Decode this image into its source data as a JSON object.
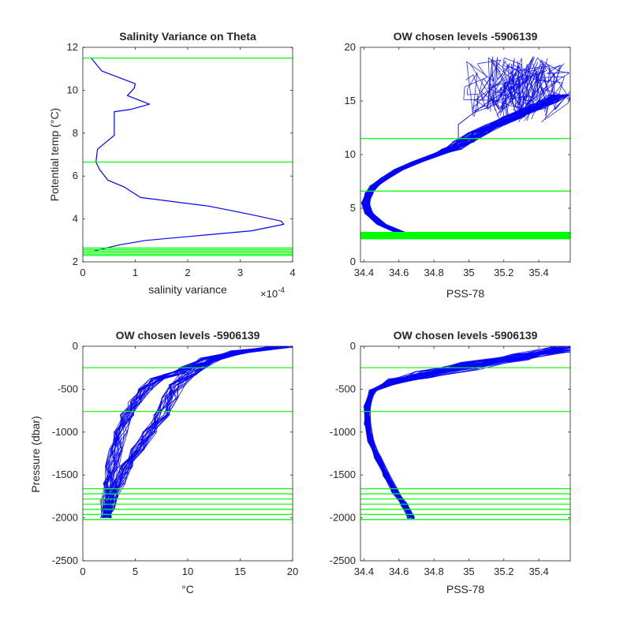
{
  "colors": {
    "profile": "#0000ff",
    "level": "#00ff00",
    "axis": "#262626"
  },
  "chart_data": [
    {
      "id": "tl",
      "type": "line",
      "title": "Salinity Variance on Theta",
      "xlabel": "salinity variance",
      "ylabel": "Potential temp (°C)",
      "xlim": [
        0,
        0.0004
      ],
      "ylim": [
        2,
        12
      ],
      "xticks": [
        0,
        1,
        2,
        3,
        4
      ],
      "xtick_scale": 0.0001,
      "xtick_labels": [
        "0",
        "1",
        "2",
        "3",
        "4"
      ],
      "x_exponent": "×10",
      "x_exponent_power": "-4",
      "yticks": [
        2,
        4,
        6,
        8,
        10,
        12
      ],
      "ytick_labels": [
        "2",
        "4",
        "6",
        "8",
        "10",
        "12"
      ],
      "series": [
        {
          "x": [
            1.6e-05,
            3.6e-05,
            0.0001,
            9.8e-05,
            8.5e-05,
            0.000127,
            9e-05,
            6e-05,
            6e-05,
            2.8e-05,
            2.5e-05,
            3.2e-05,
            4.8e-05,
            7.8e-05,
            0.00011,
            0.00024,
            0.000322,
            0.000378,
            0.000383,
            0.000322,
            0.00012,
            7.2e-05,
            3.6e-05,
            2e-05
          ],
          "y": [
            11.5,
            10.9,
            10.3,
            10.1,
            9.75,
            9.35,
            9.1,
            9.0,
            7.9,
            7.25,
            6.65,
            6.3,
            5.8,
            5.5,
            5.0,
            4.6,
            4.2,
            3.9,
            3.75,
            3.45,
            3.0,
            2.8,
            2.6,
            2.5
          ]
        }
      ],
      "hlines": [
        11.5,
        6.65,
        2.65,
        2.58,
        2.5,
        2.43,
        2.36,
        2.3
      ]
    },
    {
      "id": "tr",
      "type": "line",
      "title": "OW chosen levels -5906139",
      "xlabel": "PSS-78",
      "ylabel": "",
      "xlim": [
        34.38,
        35.58
      ],
      "ylim": [
        0,
        20
      ],
      "xticks": [
        34.4,
        34.6,
        34.8,
        35,
        35.2,
        35.4
      ],
      "xtick_labels": [
        "34.4",
        "34.6",
        "34.8",
        "35",
        "35.2",
        "35.4"
      ],
      "yticks": [
        0,
        5,
        10,
        15,
        20
      ],
      "ytick_labels": [
        "0",
        "5",
        "10",
        "15",
        "20"
      ],
      "series": [
        {
          "x": [
            34.69,
            34.6,
            34.5,
            34.43,
            34.41,
            34.43,
            34.46,
            34.52,
            34.6,
            34.7,
            34.8,
            34.9,
            34.97,
            35.05,
            35.15,
            35.25,
            35.35,
            35.45,
            35.52
          ],
          "y": [
            2.2,
            2.8,
            3.5,
            4.5,
            5.5,
            6.4,
            7.1,
            7.8,
            8.6,
            9.3,
            9.9,
            10.5,
            11.2,
            12.0,
            12.8,
            13.5,
            14.2,
            14.9,
            15.6
          ]
        }
      ],
      "hlines": [
        11.5,
        6.6,
        2.75,
        2.6,
        2.45,
        2.3,
        2.15
      ],
      "band": {
        "center_offsets": [
          -0.06,
          -0.04,
          -0.02,
          0,
          0.02,
          0.04,
          0.06
        ]
      }
    },
    {
      "id": "bl",
      "type": "line",
      "title": "OW chosen levels -5906139",
      "xlabel": "°C",
      "ylabel": "Pressure (dbar)",
      "xlim": [
        0,
        20
      ],
      "ylim": [
        -2500,
        0
      ],
      "xticks": [
        0,
        5,
        10,
        15,
        20
      ],
      "xtick_labels": [
        "0",
        "5",
        "10",
        "15",
        "20"
      ],
      "yticks": [
        -2500,
        -2000,
        -1500,
        -1000,
        -500,
        0
      ],
      "ytick_labels": [
        "-2500",
        "-2000",
        "-1500",
        "-1000",
        "-500",
        "0"
      ],
      "series": [
        {
          "x": [
            19.5,
            15,
            12,
            10,
            8.5,
            7,
            6,
            5,
            4.2,
            3.6,
            3.1,
            2.8,
            2.5,
            2.3,
            2.2
          ],
          "y": [
            0,
            -60,
            -150,
            -250,
            -330,
            -380,
            -500,
            -650,
            -800,
            -1000,
            -1200,
            -1400,
            -1600,
            -1800,
            -2000
          ]
        },
        {
          "x": [
            19,
            15,
            12.5,
            11,
            10,
            9,
            8.3,
            7.5,
            6.3,
            5.2,
            4.2,
            3.4,
            2.8,
            2.4,
            2.2
          ],
          "y": [
            0,
            -60,
            -150,
            -250,
            -330,
            -450,
            -600,
            -800,
            -1000,
            -1200,
            -1400,
            -1600,
            -1750,
            -1900,
            -2000
          ]
        }
      ],
      "hlines": [
        -250,
        -760,
        -1660,
        -1720,
        -1780,
        -1840,
        -1900,
        -1960,
        -2020
      ]
    },
    {
      "id": "br",
      "type": "line",
      "title": "OW chosen levels -5906139",
      "xlabel": "PSS-78",
      "ylabel": "",
      "xlim": [
        34.38,
        35.58
      ],
      "ylim": [
        -2500,
        0
      ],
      "xticks": [
        34.4,
        34.6,
        34.8,
        35,
        35.2,
        35.4
      ],
      "xtick_labels": [
        "34.4",
        "34.6",
        "34.8",
        "35",
        "35.2",
        "35.4"
      ],
      "yticks": [
        -2500,
        -2000,
        -1500,
        -1000,
        -500,
        0
      ],
      "ytick_labels": [
        "-2500",
        "-2000",
        "-1500",
        "-1000",
        "-500",
        "0"
      ],
      "series": [
        {
          "x": [
            35.55,
            35.3,
            35.0,
            34.75,
            34.55,
            34.45,
            34.42,
            34.42,
            34.44,
            34.48,
            34.53,
            34.58,
            34.63,
            34.67
          ],
          "y": [
            -20,
            -120,
            -230,
            -330,
            -420,
            -520,
            -700,
            -900,
            -1100,
            -1300,
            -1500,
            -1700,
            -1850,
            -2000
          ]
        }
      ],
      "hlines": [
        -250,
        -760,
        -1660,
        -1720,
        -1780,
        -1840,
        -1900,
        -1960,
        -2020
      ]
    }
  ]
}
